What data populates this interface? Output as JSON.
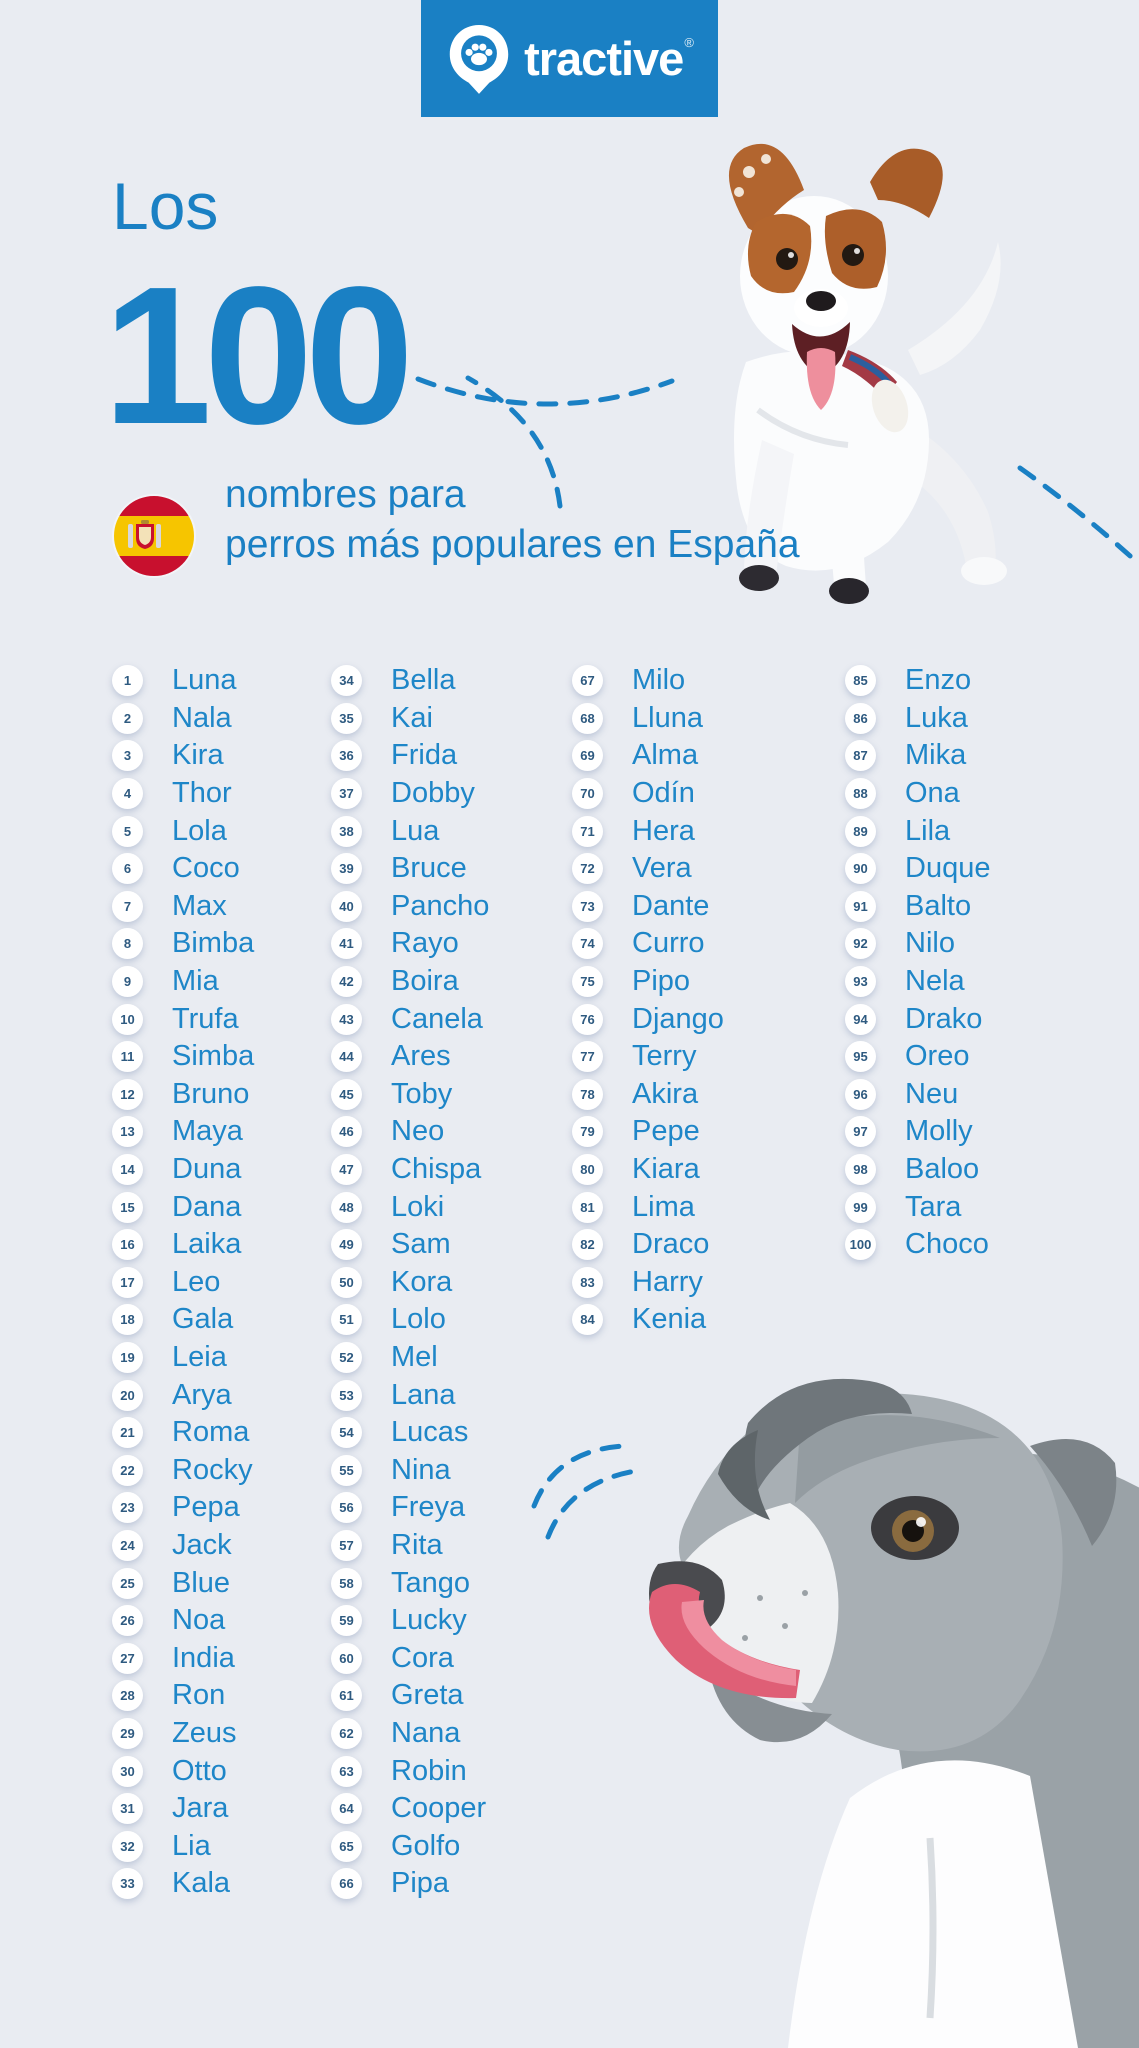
{
  "brand": {
    "name": "tractive",
    "registered": "®",
    "logo_icon": "paw-pin-icon"
  },
  "title": {
    "pre": "Los",
    "number": "100",
    "subtitle_line1": "nombres para",
    "subtitle_line2": "perros más populares en España",
    "flag_icon": "spain-flag-icon"
  },
  "colors": {
    "background": "#e9ecf2",
    "accent_blue": "#1a80c4",
    "name_blue": "#1e86c8",
    "rank_navy": "#2e5a80",
    "badge_white": "#ffffff",
    "flag_red": "#c8102e",
    "flag_yellow": "#f6c500"
  },
  "images": {
    "top_dog": "jumping jack russell terrier with tracker on collar",
    "bottom_dog": "grey and white dog licking its nose"
  },
  "names": [
    {
      "rank": 1,
      "name": "Luna"
    },
    {
      "rank": 2,
      "name": "Nala"
    },
    {
      "rank": 3,
      "name": "Kira"
    },
    {
      "rank": 4,
      "name": "Thor"
    },
    {
      "rank": 5,
      "name": "Lola"
    },
    {
      "rank": 6,
      "name": "Coco"
    },
    {
      "rank": 7,
      "name": "Max"
    },
    {
      "rank": 8,
      "name": "Bimba"
    },
    {
      "rank": 9,
      "name": "Mia"
    },
    {
      "rank": 10,
      "name": "Trufa"
    },
    {
      "rank": 11,
      "name": "Simba"
    },
    {
      "rank": 12,
      "name": "Bruno"
    },
    {
      "rank": 13,
      "name": "Maya"
    },
    {
      "rank": 14,
      "name": "Duna"
    },
    {
      "rank": 15,
      "name": "Dana"
    },
    {
      "rank": 16,
      "name": "Laika"
    },
    {
      "rank": 17,
      "name": "Leo"
    },
    {
      "rank": 18,
      "name": "Gala"
    },
    {
      "rank": 19,
      "name": "Leia"
    },
    {
      "rank": 20,
      "name": "Arya"
    },
    {
      "rank": 21,
      "name": "Roma"
    },
    {
      "rank": 22,
      "name": "Rocky"
    },
    {
      "rank": 23,
      "name": "Pepa"
    },
    {
      "rank": 24,
      "name": "Jack"
    },
    {
      "rank": 25,
      "name": "Blue"
    },
    {
      "rank": 26,
      "name": "Noa"
    },
    {
      "rank": 27,
      "name": "India"
    },
    {
      "rank": 28,
      "name": "Ron"
    },
    {
      "rank": 29,
      "name": "Zeus"
    },
    {
      "rank": 30,
      "name": "Otto"
    },
    {
      "rank": 31,
      "name": "Jara"
    },
    {
      "rank": 32,
      "name": "Lia"
    },
    {
      "rank": 33,
      "name": "Kala"
    },
    {
      "rank": 34,
      "name": "Bella"
    },
    {
      "rank": 35,
      "name": "Kai"
    },
    {
      "rank": 36,
      "name": "Frida"
    },
    {
      "rank": 37,
      "name": "Dobby"
    },
    {
      "rank": 38,
      "name": "Lua"
    },
    {
      "rank": 39,
      "name": "Bruce"
    },
    {
      "rank": 40,
      "name": "Pancho"
    },
    {
      "rank": 41,
      "name": "Rayo"
    },
    {
      "rank": 42,
      "name": "Boira"
    },
    {
      "rank": 43,
      "name": "Canela"
    },
    {
      "rank": 44,
      "name": "Ares"
    },
    {
      "rank": 45,
      "name": "Toby"
    },
    {
      "rank": 46,
      "name": "Neo"
    },
    {
      "rank": 47,
      "name": "Chispa"
    },
    {
      "rank": 48,
      "name": "Loki"
    },
    {
      "rank": 49,
      "name": "Sam"
    },
    {
      "rank": 50,
      "name": "Kora"
    },
    {
      "rank": 51,
      "name": "Lolo"
    },
    {
      "rank": 52,
      "name": "Mel"
    },
    {
      "rank": 53,
      "name": "Lana"
    },
    {
      "rank": 54,
      "name": "Lucas"
    },
    {
      "rank": 55,
      "name": "Nina"
    },
    {
      "rank": 56,
      "name": "Freya"
    },
    {
      "rank": 57,
      "name": "Rita"
    },
    {
      "rank": 58,
      "name": "Tango"
    },
    {
      "rank": 59,
      "name": "Lucky"
    },
    {
      "rank": 60,
      "name": "Cora"
    },
    {
      "rank": 61,
      "name": "Greta"
    },
    {
      "rank": 62,
      "name": "Nana"
    },
    {
      "rank": 63,
      "name": "Robin"
    },
    {
      "rank": 64,
      "name": "Cooper"
    },
    {
      "rank": 65,
      "name": "Golfo"
    },
    {
      "rank": 66,
      "name": "Pipa"
    },
    {
      "rank": 67,
      "name": "Milo"
    },
    {
      "rank": 68,
      "name": "Lluna"
    },
    {
      "rank": 69,
      "name": "Alma"
    },
    {
      "rank": 70,
      "name": "Odín"
    },
    {
      "rank": 71,
      "name": "Hera"
    },
    {
      "rank": 72,
      "name": "Vera"
    },
    {
      "rank": 73,
      "name": "Dante"
    },
    {
      "rank": 74,
      "name": "Curro"
    },
    {
      "rank": 75,
      "name": "Pipo"
    },
    {
      "rank": 76,
      "name": "Django"
    },
    {
      "rank": 77,
      "name": "Terry"
    },
    {
      "rank": 78,
      "name": "Akira"
    },
    {
      "rank": 79,
      "name": "Pepe"
    },
    {
      "rank": 80,
      "name": "Kiara"
    },
    {
      "rank": 81,
      "name": "Lima"
    },
    {
      "rank": 82,
      "name": "Draco"
    },
    {
      "rank": 83,
      "name": "Harry"
    },
    {
      "rank": 84,
      "name": "Kenia"
    },
    {
      "rank": 85,
      "name": "Enzo"
    },
    {
      "rank": 86,
      "name": "Luka"
    },
    {
      "rank": 87,
      "name": "Mika"
    },
    {
      "rank": 88,
      "name": "Ona"
    },
    {
      "rank": 89,
      "name": "Lila"
    },
    {
      "rank": 90,
      "name": "Duque"
    },
    {
      "rank": 91,
      "name": "Balto"
    },
    {
      "rank": 92,
      "name": "Nilo"
    },
    {
      "rank": 93,
      "name": "Nela"
    },
    {
      "rank": 94,
      "name": "Drako"
    },
    {
      "rank": 95,
      "name": "Oreo"
    },
    {
      "rank": 96,
      "name": "Neu"
    },
    {
      "rank": 97,
      "name": "Molly"
    },
    {
      "rank": 98,
      "name": "Baloo"
    },
    {
      "rank": 99,
      "name": "Tara"
    },
    {
      "rank": 100,
      "name": "Choco"
    }
  ]
}
